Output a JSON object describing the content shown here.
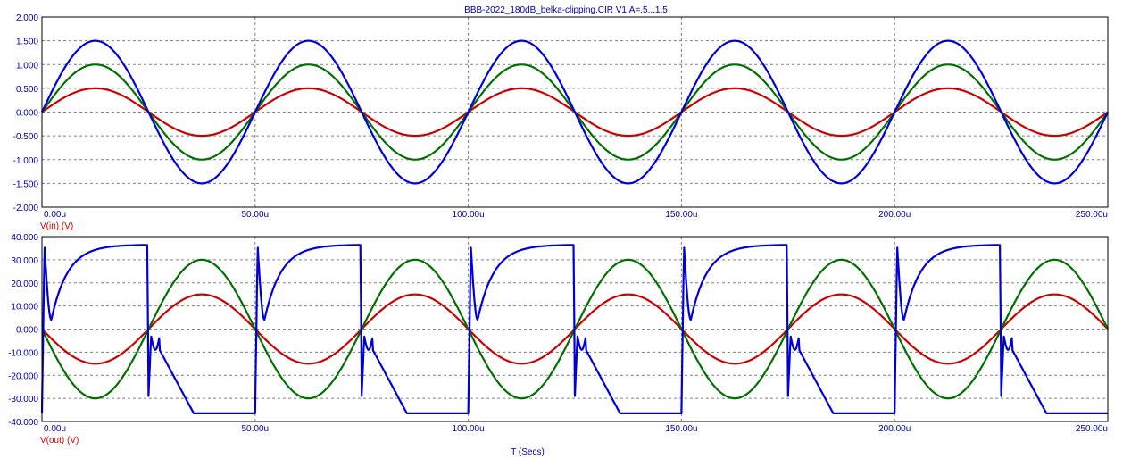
{
  "title": "BBB-2022_180dB_belka-clipping.CIR V1.A=.5...1.5",
  "xaxis_title": "T (Secs)",
  "colors": {
    "axis_text": "#0000aa",
    "grid": "#808080",
    "frame": "#000000",
    "label": "#cc0000",
    "series": [
      "#cc0000",
      "#007000",
      "#0000dd"
    ]
  },
  "chart_data": [
    {
      "type": "line",
      "ylabel": "V(in) (V)",
      "xlim": [
        0,
        250
      ],
      "ylim": [
        -2,
        2
      ],
      "x_unit": "u",
      "xticks": [
        "0.00u",
        "50.00u",
        "100.00u",
        "150.00u",
        "200.00u",
        "250.00u"
      ],
      "yticks": [
        "2.000",
        "1.500",
        "1.000",
        "0.500",
        "0.000",
        "-0.500",
        "-1.000",
        "-1.500",
        "-2.000"
      ],
      "grid": true,
      "series": [
        {
          "amplitude": 0.5,
          "period": 50,
          "color": "#cc0000"
        },
        {
          "amplitude": 1.0,
          "period": 50,
          "color": "#007000"
        },
        {
          "amplitude": 1.5,
          "period": 50,
          "color": "#0000dd"
        }
      ]
    },
    {
      "type": "line",
      "ylabel": "V(out) (V)",
      "xlim": [
        0,
        250
      ],
      "ylim": [
        -40,
        40
      ],
      "x_unit": "u",
      "xticks": [
        "0.00u",
        "50.00u",
        "100.00u",
        "150.00u",
        "200.00u",
        "250.00u"
      ],
      "yticks": [
        "40.000",
        "30.000",
        "20.000",
        "10.000",
        "0.000",
        "-10.000",
        "-20.000",
        "-30.000",
        "-40.000"
      ],
      "grid": true,
      "series": [
        {
          "amplitude": 15,
          "period": 50,
          "inverted": true,
          "color": "#cc0000"
        },
        {
          "amplitude": 30,
          "period": 50,
          "inverted": true,
          "color": "#007000"
        },
        {
          "clipping": true,
          "clip_high": 36.5,
          "clip_low": -36.5,
          "overshoot_peak": 36,
          "undershoot_peak": -29,
          "period": 50,
          "color": "#0000dd"
        }
      ]
    }
  ]
}
